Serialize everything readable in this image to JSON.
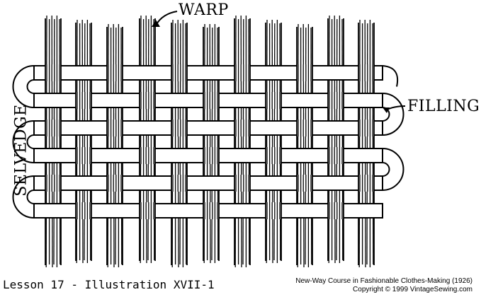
{
  "labels": {
    "warp": "WARP",
    "filling": "FILLING",
    "selvedge": "SELVEDGE"
  },
  "caption": "Lesson 17 - Illustration XVII-1",
  "credits": {
    "line1": "New-Way Course in Fashionable Clothes-Making (1926)",
    "line2": "Copyright © 1999 VintageSewing.com"
  },
  "colors": {
    "ink": "#000000",
    "paper": "#ffffff"
  }
}
